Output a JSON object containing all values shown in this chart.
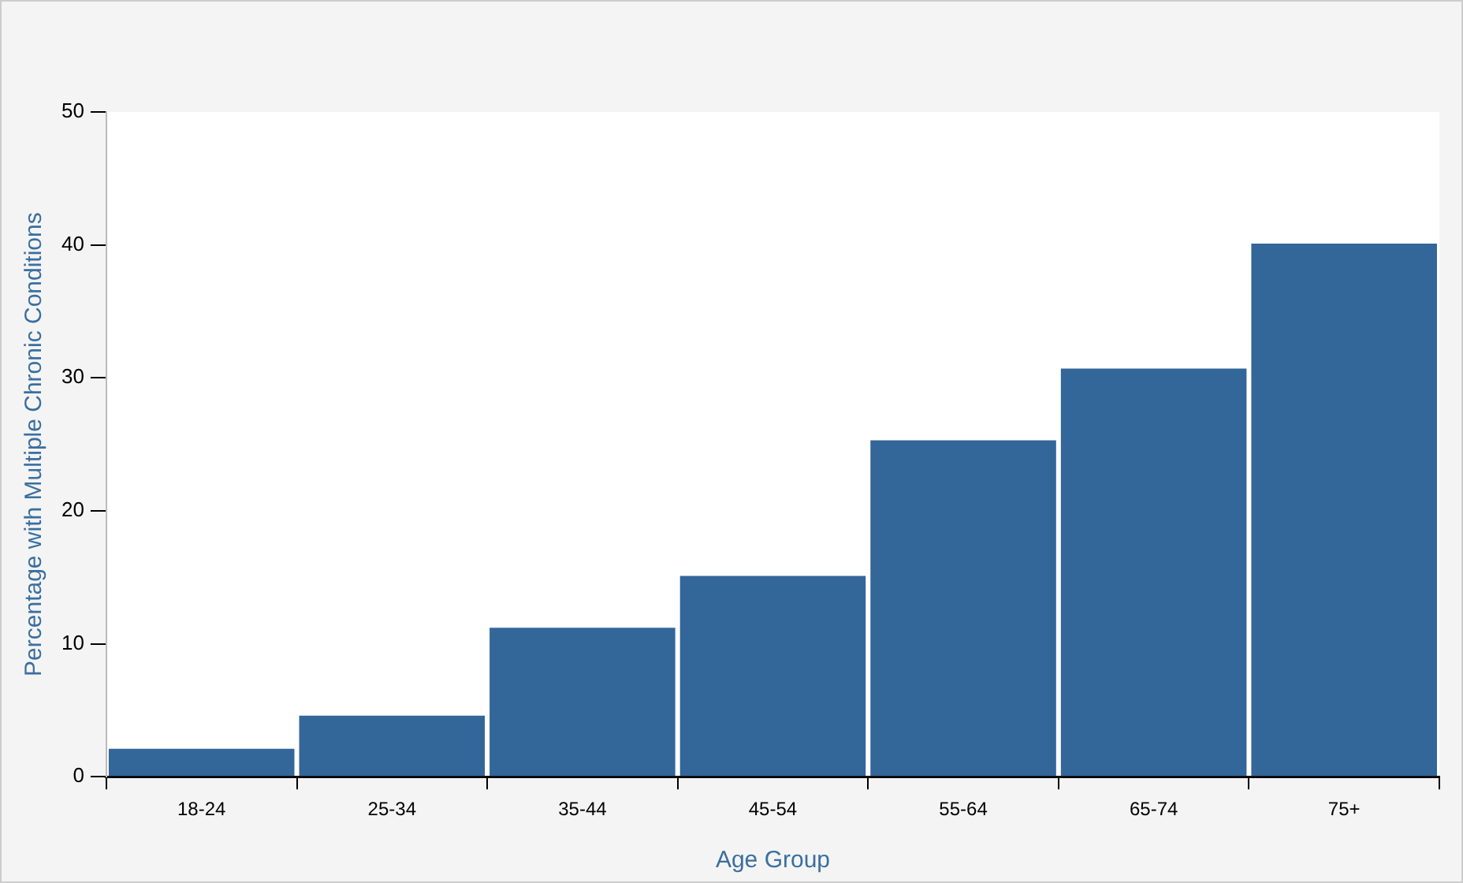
{
  "chart_data": {
    "type": "bar",
    "xlabel": "Age Group",
    "ylabel": "Percentage with Multiple Chronic Conditions",
    "categories": [
      "18-24",
      "25-34",
      "35-44",
      "45-54",
      "55-64",
      "65-74",
      "75+"
    ],
    "values": [
      2.1,
      4.6,
      11.2,
      15.1,
      25.3,
      30.7,
      40.1
    ],
    "color": "#336699",
    "ylim": [
      0,
      50
    ],
    "yticks": [
      0,
      10,
      20,
      30,
      40,
      50
    ],
    "grid": false,
    "legend": false
  }
}
